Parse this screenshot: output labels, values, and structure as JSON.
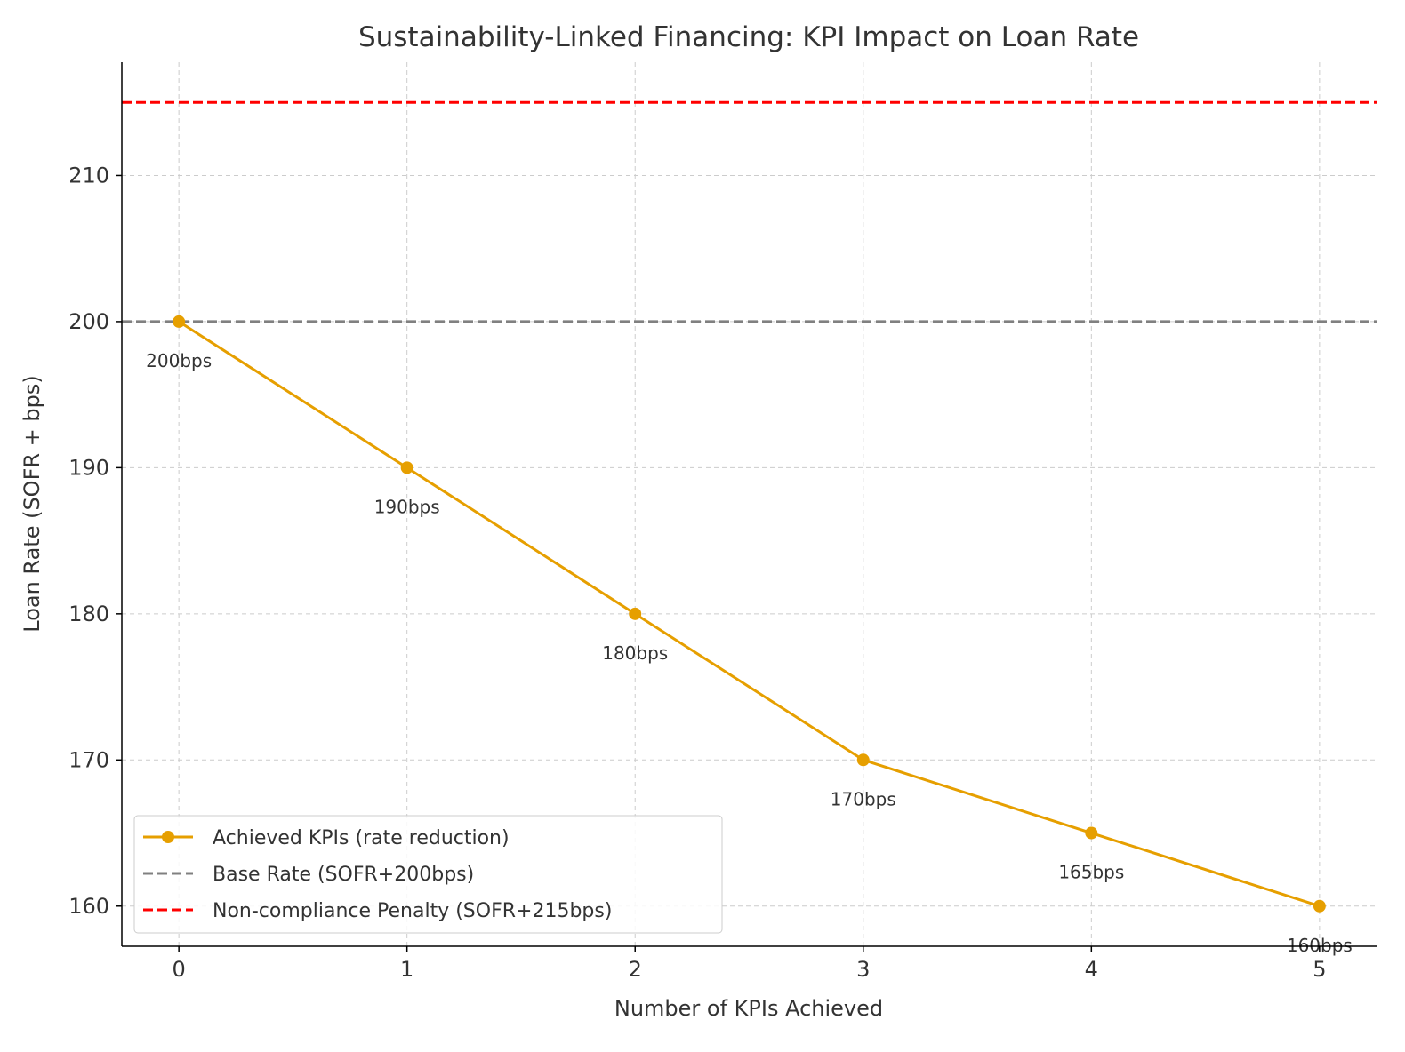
{
  "chart_data": {
    "type": "line",
    "title": "Sustainability-Linked Financing: KPI Impact on Loan Rate",
    "xlabel": "Number of KPIs Achieved",
    "ylabel": "Loan Rate (SOFR + bps)",
    "x": [
      0,
      1,
      2,
      3,
      4,
      5
    ],
    "xticks": [
      "0",
      "1",
      "2",
      "3",
      "4",
      "5"
    ],
    "yticks": [
      160,
      170,
      180,
      190,
      200,
      210
    ],
    "xlim": [
      -0.25,
      5.25
    ],
    "ylim": [
      157.25,
      217.75
    ],
    "grid": true,
    "legend_position": "lower-left",
    "series": [
      {
        "name": "Achieved KPIs (rate reduction)",
        "values": [
          200,
          190,
          180,
          170,
          165,
          160
        ],
        "labels": [
          "200bps",
          "190bps",
          "180bps",
          "170bps",
          "165bps",
          "160bps"
        ],
        "color": "#E69F00",
        "style": "solid-marker"
      }
    ],
    "reference_lines": [
      {
        "name": "Base Rate (SOFR+200bps)",
        "y": 200,
        "color": "#808080",
        "style": "dashed"
      },
      {
        "name": "Non-compliance Penalty (SOFR+215bps)",
        "y": 215,
        "color": "#FF0000",
        "style": "dashed"
      }
    ]
  }
}
